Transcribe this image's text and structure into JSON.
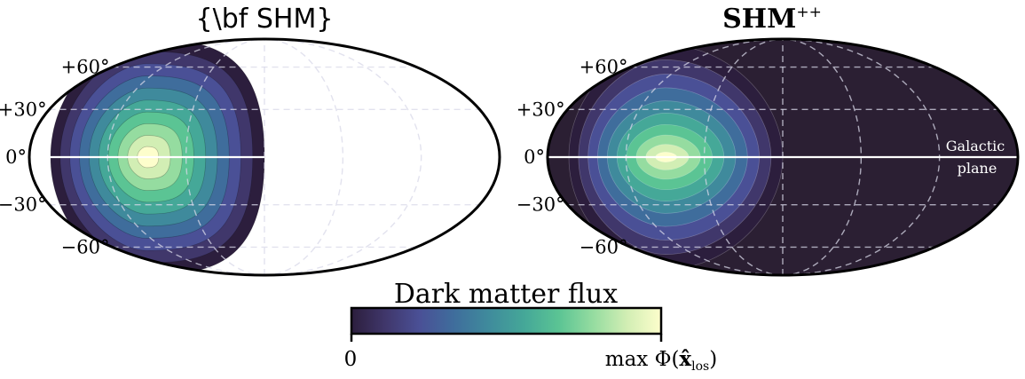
{
  "chart_data": [
    {
      "type": "heatmap",
      "projection": "mollweide",
      "title": "{\\bf SHM}",
      "lat_tick_labels": [
        "+60°",
        "+30°",
        "0°",
        "−30°",
        "−60°"
      ],
      "lat_ticks_deg": [
        60,
        30,
        0,
        -30,
        -60
      ],
      "lon_gridlines_deg": [
        -120,
        -60,
        0,
        60,
        120
      ],
      "data_extent_lon_deg": [
        -180,
        0
      ],
      "peak": {
        "lon_deg": -90,
        "lat_deg": 0
      },
      "galactic_plane_line": true,
      "background": "white",
      "colormap": "deep_r"
    },
    {
      "type": "heatmap",
      "projection": "mollweide",
      "title_main": "SHM",
      "title_sup": "++",
      "lat_tick_labels": [
        "+60°",
        "+30°",
        "0°",
        "−30°",
        "−60°"
      ],
      "lat_ticks_deg": [
        60,
        30,
        0,
        -30,
        -60
      ],
      "lon_gridlines_deg": [
        -120,
        -60,
        0,
        60,
        120
      ],
      "data_extent_lon_deg": [
        -180,
        0
      ],
      "peak": {
        "lon_deg": -90,
        "lat_deg": 0
      },
      "galactic_plane_line": true,
      "annotation": [
        "Galactic",
        "plane"
      ],
      "background": "#2b1f33",
      "colormap": "deep_r"
    }
  ],
  "colorbar": {
    "label": "Dark matter flux",
    "min_label": "0",
    "max_label_prefix": "max Φ(",
    "max_label_var": "x̂",
    "max_label_sub": "los",
    "max_label_suffix": ")",
    "colors": [
      "#2c1e3d",
      "#40376b",
      "#4a5096",
      "#3f6d9c",
      "#3f8a9c",
      "#45a898",
      "#5bc494",
      "#95dca0",
      "#d2eeb4",
      "#fdfecc"
    ]
  }
}
